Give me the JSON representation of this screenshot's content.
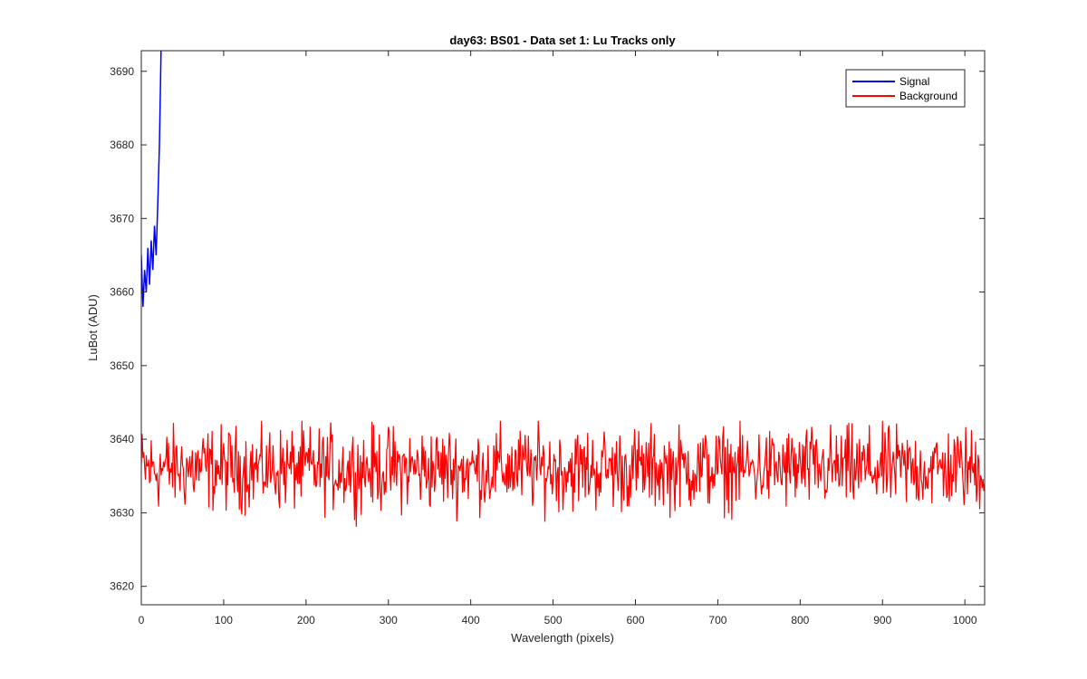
{
  "chart_data": {
    "type": "line",
    "title": "day63: BS01 - Data set 1: Lu Tracks only",
    "xlabel": "Wavelength (pixels)",
    "ylabel": "LuBot (ADU)",
    "xlim": [
      0,
      1024
    ],
    "ylim": [
      3617.5,
      3692.8
    ],
    "x_ticks": [
      0,
      100,
      200,
      300,
      400,
      500,
      600,
      700,
      800,
      900,
      1000
    ],
    "y_ticks": [
      3620,
      3630,
      3640,
      3650,
      3660,
      3670,
      3680,
      3690
    ],
    "grid": false,
    "legend_position": "top-right",
    "series": [
      {
        "name": "Signal",
        "color": "#0000ff",
        "x": [
          0,
          2,
          4,
          6,
          8,
          10,
          12,
          14,
          16,
          18,
          20,
          22,
          24
        ],
        "y": [
          3665,
          3658,
          3663,
          3660,
          3666,
          3661,
          3667,
          3663,
          3669,
          3665,
          3672,
          3680,
          3693
        ]
      },
      {
        "name": "Background",
        "color": "#ff0000",
        "x_range": [
          0,
          1024
        ],
        "mean": 3636,
        "noise_min": 3628,
        "noise_max": 3642.5
      }
    ]
  }
}
